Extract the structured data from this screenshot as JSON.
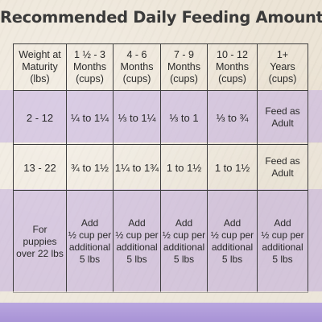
{
  "title": "Recommended Daily Feeding Amounts:",
  "headers": [
    "Weight at\nMaturity\n(lbs)",
    "1 ½ - 3\nMonths\n(cups)",
    "4 - 6\nMonths\n(cups)",
    "7 - 9\nMonths\n(cups)",
    "10 - 12\nMonths\n(cups)",
    "1+\nYears\n(cups)"
  ],
  "rows": [
    [
      "2 - 12",
      "¼ to 1¼",
      "⅓ to 1¼",
      "⅓ to 1",
      "⅓ to ¾",
      "Feed as\nAdult"
    ],
    [
      "13 - 22",
      "¾ to 1½",
      "1¼ to 1¾",
      "1 to 1½",
      "1 to 1½",
      "Feed as\nAdult"
    ],
    [
      "For\npuppies\nover 22 lbs",
      "Add\n½ cup per\nadditional\n5 lbs",
      "Add\n½ cup per\nadditional\n5 lbs",
      "Add\n½ cup per\nadditional\n5 lbs",
      "Add\n½ cup per\nadditional\n5 lbs",
      "Add\n½ cup per\nadditional\n5 lbs"
    ]
  ],
  "colors": {
    "band": "#c4b0e4",
    "background": "#ece4d6",
    "strip": "#b9a6df"
  }
}
